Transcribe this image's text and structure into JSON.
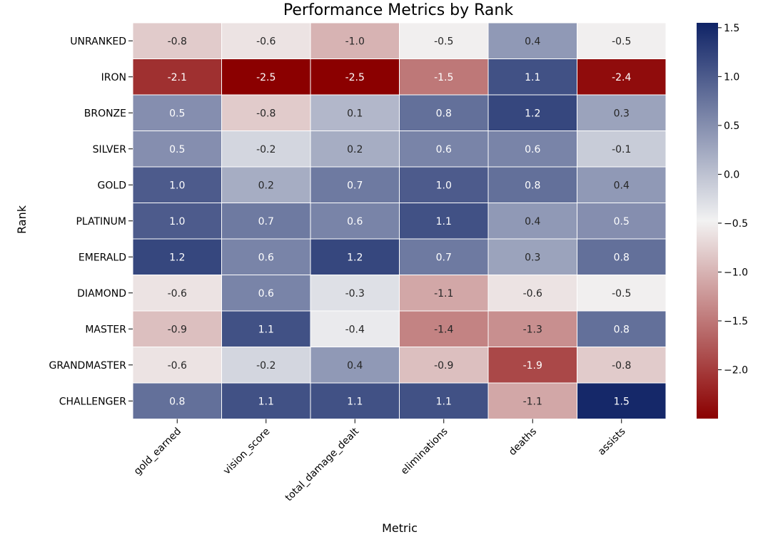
{
  "chart_data": {
    "type": "heatmap",
    "title": "Performance Metrics by Rank",
    "xlabel": "Metric",
    "ylabel": "Rank",
    "x_categories": [
      "gold_earned",
      "vision_score",
      "total_damage_dealt",
      "eliminations",
      "deaths",
      "assists"
    ],
    "y_categories": [
      "UNRANKED",
      "IRON",
      "BRONZE",
      "SILVER",
      "GOLD",
      "PLATINUM",
      "EMERALD",
      "DIAMOND",
      "MASTER",
      "GRANDMASTER",
      "CHALLENGER"
    ],
    "values": [
      [
        -0.8,
        -0.6,
        -1.0,
        -0.5,
        0.4,
        -0.5
      ],
      [
        -2.1,
        -2.5,
        -2.5,
        -1.5,
        1.1,
        -2.4
      ],
      [
        0.5,
        -0.8,
        0.1,
        0.8,
        1.2,
        0.3
      ],
      [
        0.5,
        -0.2,
        0.2,
        0.6,
        0.6,
        -0.1
      ],
      [
        1.0,
        0.2,
        0.7,
        1.0,
        0.8,
        0.4
      ],
      [
        1.0,
        0.7,
        0.6,
        1.1,
        0.4,
        0.5
      ],
      [
        1.2,
        0.6,
        1.2,
        0.7,
        0.3,
        0.8
      ],
      [
        -0.6,
        0.6,
        -0.3,
        -1.1,
        -0.6,
        -0.5
      ],
      [
        -0.9,
        1.1,
        -0.4,
        -1.4,
        -1.3,
        0.8
      ],
      [
        -0.6,
        -0.2,
        0.4,
        -0.9,
        -1.9,
        -0.8
      ],
      [
        0.8,
        1.1,
        1.1,
        1.1,
        -1.1,
        1.5
      ]
    ],
    "colorbar": {
      "min": -2.5,
      "max": 1.55,
      "ticks": [
        1.5,
        1.0,
        0.5,
        0.0,
        -0.5,
        -1.0,
        -1.5,
        -2.0
      ],
      "tick_labels": [
        "1.5",
        "1.0",
        "0.5",
        "0.0",
        "−0.5",
        "−1.0",
        "−1.5",
        "−2.0"
      ]
    },
    "colormap": {
      "low": "#8b0000",
      "mid": "#f2f2f2",
      "high": "#0f2366"
    },
    "grid": true,
    "legend": "colorbar-right"
  }
}
